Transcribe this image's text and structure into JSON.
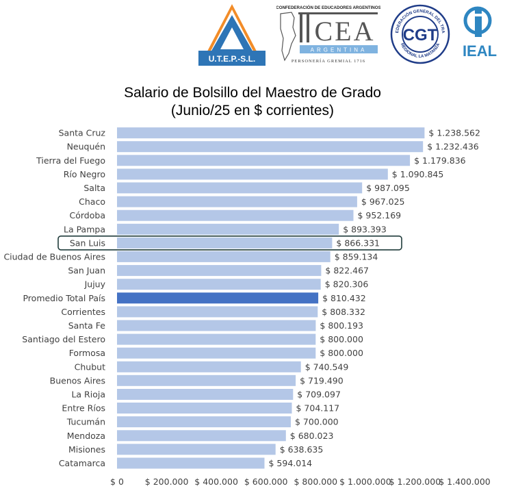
{
  "logos": {
    "utep": "U.T.E.P.-S.L.",
    "cea_header": "CONFEDERACIÓN DE EDUCADORES ARGENTINOS",
    "cea_name": "CEA",
    "cea_country": "ARGENTINA",
    "cea_footer": "PERSONERÍA GREMIAL 1716",
    "cgt_letters": "CGT",
    "cgt_ring_top": "CONFEDERACIÓN GENERAL DEL TRABAJO",
    "cgt_ring_bottom": "REGIONAL LA MATANZA",
    "ieal": "IEAL"
  },
  "colors": {
    "bar": "#b4c7e7",
    "bar_highlight": "#4472c4",
    "highlight_box": "#1f3b3a",
    "text": "#404040",
    "utep_blue": "#2e75b6",
    "utep_orange": "#f28c28",
    "cgt_blue": "#1f3c88",
    "ieal_blue": "#2e86c1"
  },
  "chart_data": {
    "type": "bar",
    "orientation": "horizontal",
    "title": "Salario de Bolsillo del Maestro de Grado",
    "subtitle": "(Junio/25 en $ corrientes)",
    "categories": [
      "Santa Cruz",
      "Neuquén",
      "Tierra del Fuego",
      "Río Negro",
      "Salta",
      "Chaco",
      "Córdoba",
      "La Pampa",
      "San Luis",
      "Ciudad de Buenos Aires",
      "San Juan",
      "Jujuy",
      "Promedio Total País",
      "Corrientes",
      "Santa Fe",
      "Santiago del Estero",
      "Formosa",
      "Chubut",
      "Buenos Aires",
      "La Rioja",
      "Entre Ríos",
      "Tucumán",
      "Mendoza",
      "Misiones",
      "Catamarca"
    ],
    "values": [
      1238562,
      1232436,
      1179836,
      1090845,
      987095,
      967025,
      952169,
      893393,
      866331,
      859134,
      822467,
      820306,
      810432,
      808332,
      800193,
      800000,
      800000,
      740549,
      719490,
      709097,
      704117,
      700000,
      680023,
      638635,
      594014
    ],
    "data_labels": [
      "$ 1.238.562",
      "$ 1.232.436",
      "$ 1.179.836",
      "$ 1.090.845",
      "$ 987.095",
      "$ 967.025",
      "$ 952.169",
      "$ 893.393",
      "$ 866.331",
      "$ 859.134",
      "$ 822.467",
      "$ 820.306",
      "$ 810.432",
      "$ 808.332",
      "$ 800.193",
      "$ 800.000",
      "$ 800.000",
      "$ 740.549",
      "$ 719.490",
      "$ 709.097",
      "$ 704.117",
      "$ 700.000",
      "$ 680.023",
      "$ 638.635",
      "$ 594.014"
    ],
    "highlight_bar": "Promedio Total País",
    "boxed_category": "San Luis",
    "xlim": [
      0,
      1400000
    ],
    "x_ticks": [
      0,
      200000,
      400000,
      600000,
      800000,
      1000000,
      1200000,
      1400000
    ],
    "x_tick_labels": [
      "$ 0",
      "$ 200.000",
      "$ 400.000",
      "$ 600.000",
      "$ 800.000",
      "$ 1.000.000",
      "$ 1.200.000",
      "$ 1.400.000"
    ],
    "xlabel": "",
    "ylabel": "",
    "grid": false,
    "legend": "none"
  }
}
